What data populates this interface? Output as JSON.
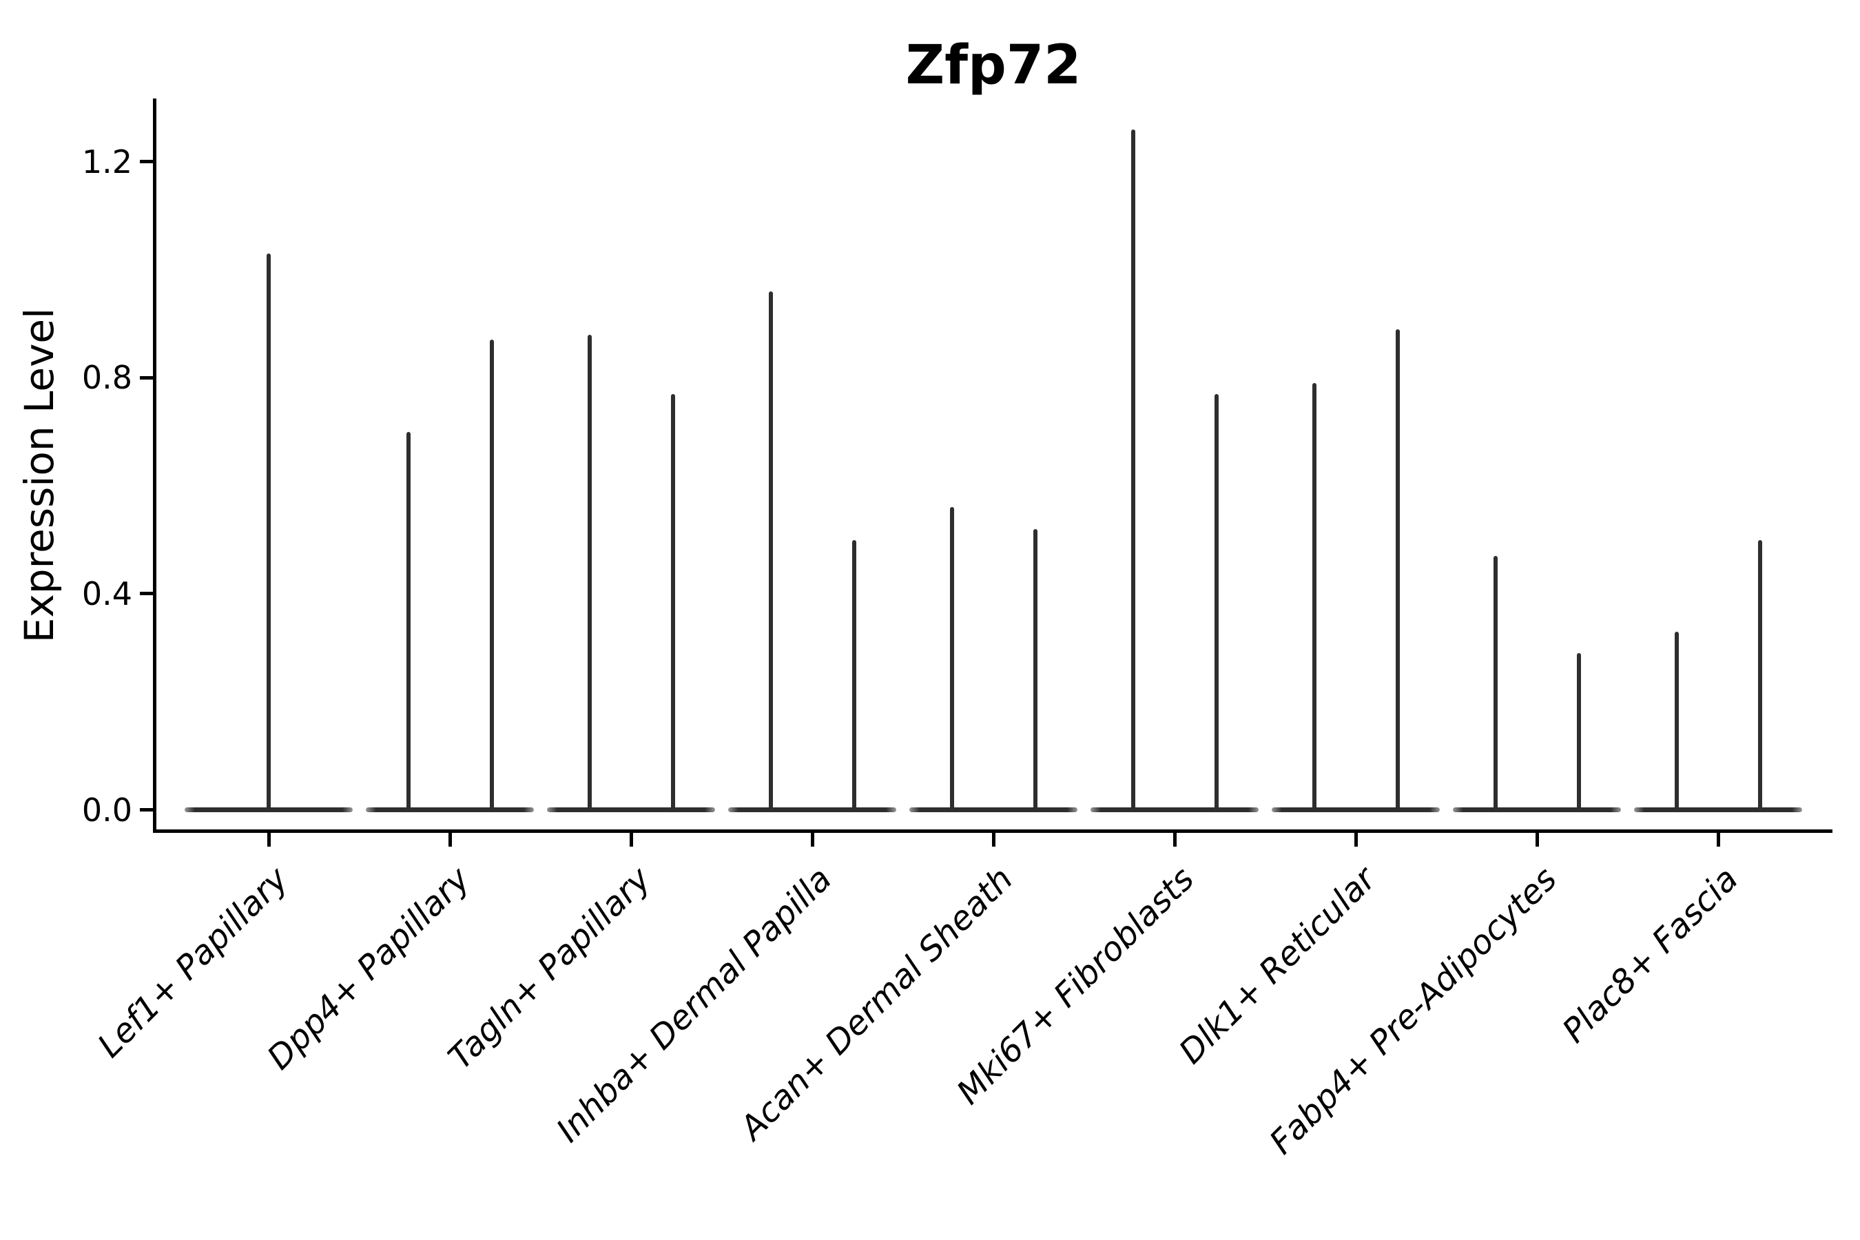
{
  "figure": {
    "background_color": "#ffffff",
    "axis_color": "#000000",
    "violin_color": "#2e2e2e"
  },
  "chart_data": {
    "type": "violin",
    "title": "Zfp72",
    "xlabel": "",
    "ylabel": "Expression Level",
    "ylim": [
      0.0,
      1.32
    ],
    "yticks": [
      0.0,
      0.4,
      0.8,
      1.2
    ],
    "grid": false,
    "legend": "none",
    "categories": [
      "Lef1+ Papillary",
      "Dpp4+ Papillary",
      "Tagln+ Papillary",
      "Inhba+ Dermal Papilla",
      "Acan+ Dermal Sheath",
      "Mki67+ Fibroblasts",
      "Dlk1+ Reticular",
      "Fabp4+ Pre-Adipocytes",
      "Plac8+ Fascia"
    ],
    "series": [
      {
        "category": "Lef1+ Papillary",
        "baseline_value": 0.0,
        "spike_maxima": [
          1.03
        ]
      },
      {
        "category": "Dpp4+ Papillary",
        "baseline_value": 0.0,
        "spike_maxima": [
          0.7,
          0.87
        ]
      },
      {
        "category": "Tagln+ Papillary",
        "baseline_value": 0.0,
        "spike_maxima": [
          0.88,
          0.77
        ]
      },
      {
        "category": "Inhba+ Dermal Papilla",
        "baseline_value": 0.0,
        "spike_maxima": [
          0.96,
          0.5
        ]
      },
      {
        "category": "Acan+ Dermal Sheath",
        "baseline_value": 0.0,
        "spike_maxima": [
          0.56,
          0.52
        ]
      },
      {
        "category": "Mki67+ Fibroblasts",
        "baseline_value": 0.0,
        "spike_maxima": [
          1.26,
          0.77
        ]
      },
      {
        "category": "Dlk1+ Reticular",
        "baseline_value": 0.0,
        "spike_maxima": [
          0.79,
          0.89
        ]
      },
      {
        "category": "Fabp4+ Pre-Adipocytes",
        "baseline_value": 0.0,
        "spike_maxima": [
          0.47,
          0.29
        ]
      },
      {
        "category": "Plac8+ Fascia",
        "baseline_value": 0.0,
        "spike_maxima": [
          0.33,
          0.5
        ]
      }
    ]
  }
}
